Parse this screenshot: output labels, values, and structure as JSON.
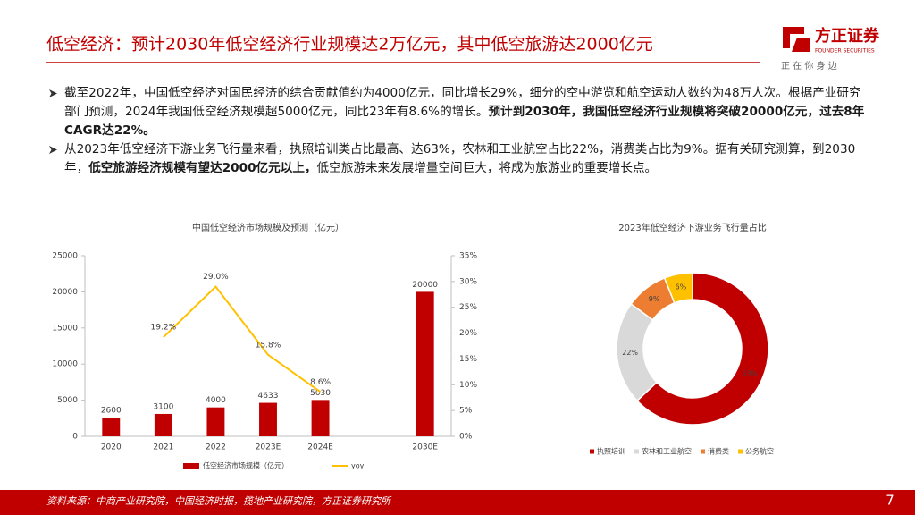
{
  "header": {
    "title": "低空经济：预计2030年低空经济行业规模达2万亿元，其中低空旅游达2000亿元",
    "logo_name": "方正证券",
    "logo_english": "FOUNDER SECURITIES",
    "logo_slogan": "正 在 你 身 边"
  },
  "bullets": [
    {
      "segments": [
        {
          "text": "截至2022年，中国低空经济对国民经济的综合贡献值约为4000亿元，同比增长29%，细分的空中游览和航空运动人数约为48万人次。根据产业研究部门预测，2024年我国低空经济规模超5000亿元，同比23年有8.6%的增长。",
          "bold": false
        },
        {
          "text": "预计到2030年，我国低空经济行业规模将突破20000亿元，过去8年CAGR达22%。",
          "bold": true
        }
      ]
    },
    {
      "segments": [
        {
          "text": "从2023年低空经济下游业务飞行量来看，执照培训类占比最高、达63%，农林和工业航空占比22%，消费类占比为9%。据有关研究测算，到2030年，",
          "bold": false
        },
        {
          "text": "低空旅游经济规模有望达2000亿元以上，",
          "bold": true
        },
        {
          "text": "低空旅游未来发展增量空间巨大，将成为旅游业的重要增长点。",
          "bold": false
        }
      ]
    }
  ],
  "chart_data": [
    {
      "type": "bar",
      "title": "中国低空经济市场规模及预测（亿元）",
      "categories": [
        "2020",
        "2021",
        "2022",
        "2023E",
        "2024E",
        null,
        "2030E"
      ],
      "series": [
        {
          "name": "低空经济市场规模（亿元）",
          "type": "bar",
          "color": "#c00000",
          "values": [
            2600,
            3100,
            4000,
            4633,
            5030,
            null,
            20000
          ]
        },
        {
          "name": "yoy",
          "type": "line",
          "axis": "y2",
          "color": "#ffc000",
          "values": [
            null,
            19.2,
            29.0,
            15.8,
            8.6,
            null,
            null
          ],
          "value_labels": [
            null,
            "19.2%",
            "29.0%",
            "15.8%",
            "8.6%",
            null,
            null
          ]
        }
      ],
      "ylim": [
        0,
        25000
      ],
      "yticks": [
        0,
        5000,
        10000,
        15000,
        20000,
        25000
      ],
      "y2lim": [
        0,
        35
      ],
      "y2ticks": [
        {
          "value": 0,
          "label": "0%"
        },
        {
          "value": 5,
          "label": "5%"
        },
        {
          "value": 10,
          "label": "10%"
        },
        {
          "value": 15,
          "label": "15%"
        },
        {
          "value": 20,
          "label": "20%"
        },
        {
          "value": 25,
          "label": "25%"
        },
        {
          "value": 30,
          "label": "30%"
        },
        {
          "value": 35,
          "label": "35%"
        }
      ]
    },
    {
      "type": "pie",
      "title": "2023年低空经济下游业务飞行量占比",
      "categories": [
        "执照培训",
        "农林和工业航空",
        "消费类",
        "公务航空"
      ],
      "values": [
        63,
        22,
        9,
        6
      ],
      "value_labels": [
        "63%",
        "22%",
        "9%",
        "6%"
      ],
      "colors": [
        "#c00000",
        "#d9d9d9",
        "#ed7d31",
        "#ffc000"
      ]
    }
  ],
  "footer": {
    "source": "资料来源：中商产业研究院，中国经济时报，揽地产业研究院，方正证券研究所",
    "page": "7"
  }
}
